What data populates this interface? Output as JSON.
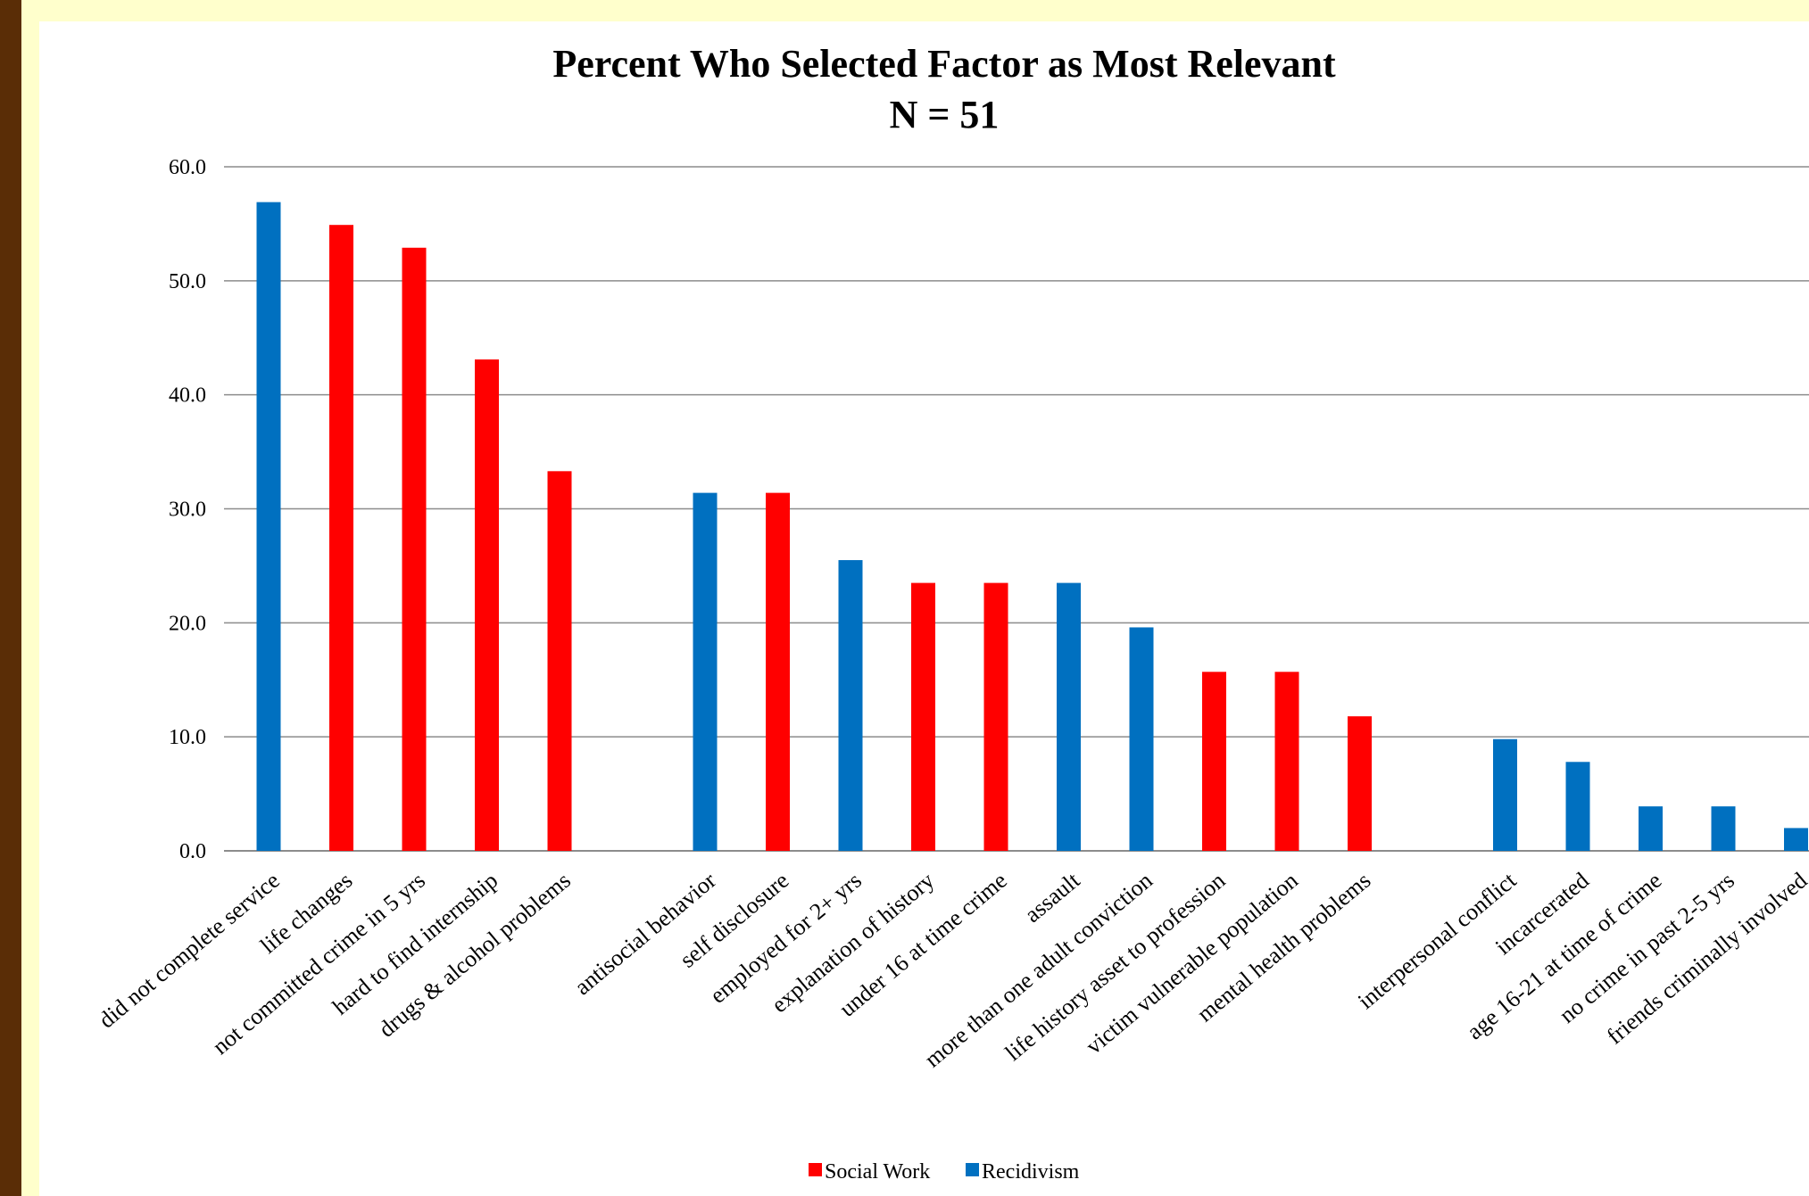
{
  "chart_data": {
    "type": "bar",
    "title": "Percent Who Selected Factor as Most Relevant",
    "subtitle": "N = 51",
    "xlabel": "",
    "ylabel": "",
    "ylim": [
      0,
      60
    ],
    "yticks": [
      "0.0",
      "10.0",
      "20.0",
      "30.0",
      "40.0",
      "50.0",
      "60.0"
    ],
    "grid": true,
    "legend_position": "bottom",
    "colors": {
      "social_work": "#ff0000",
      "recidivism": "#0070c0"
    },
    "series": [
      {
        "name": "Social Work",
        "color": "#ff0000"
      },
      {
        "name": "Recidivism",
        "color": "#0070c0"
      }
    ],
    "categories": [
      "did not complete service",
      "life changes",
      "not committed crime in 5 yrs",
      "hard to find internship",
      "drugs & alcohol problems",
      "",
      "antisocial behavior",
      "self disclosure",
      "employed for 2+ yrs",
      "explanation of history",
      "under 16 at time crime",
      "assault",
      "more than one adult conviction",
      "life history asset to profession",
      "victim vulnerable population",
      "mental health problems",
      "",
      "interpersonal conflict",
      "incarcerated",
      "age 16-21 at time of crime",
      "no crime in past 2-5 yrs",
      "friends criminally involved"
    ],
    "bars": [
      {
        "category": "did not complete service",
        "series": "Recidivism",
        "value": 56.9
      },
      {
        "category": "life changes",
        "series": "Social Work",
        "value": 54.9
      },
      {
        "category": "not committed crime in 5 yrs",
        "series": "Social Work",
        "value": 52.9
      },
      {
        "category": "hard to find internship",
        "series": "Social Work",
        "value": 43.1
      },
      {
        "category": "drugs & alcohol problems",
        "series": "Social Work",
        "value": 33.3
      },
      {
        "category": "antisocial behavior",
        "series": "Recidivism",
        "value": 31.4
      },
      {
        "category": "self disclosure",
        "series": "Social Work",
        "value": 31.4
      },
      {
        "category": "employed for 2+ yrs",
        "series": "Recidivism",
        "value": 25.5
      },
      {
        "category": "explanation of history",
        "series": "Social Work",
        "value": 23.5
      },
      {
        "category": "under 16 at time crime",
        "series": "Social Work",
        "value": 23.5
      },
      {
        "category": "assault",
        "series": "Recidivism",
        "value": 23.5
      },
      {
        "category": "more than one adult conviction",
        "series": "Recidivism",
        "value": 19.6
      },
      {
        "category": "life history asset to profession",
        "series": "Social Work",
        "value": 15.7
      },
      {
        "category": "victim vulnerable population",
        "series": "Social Work",
        "value": 15.7
      },
      {
        "category": "mental health problems",
        "series": "Social Work",
        "value": 11.8
      },
      {
        "category": "interpersonal conflict",
        "series": "Recidivism",
        "value": 9.8
      },
      {
        "category": "incarcerated",
        "series": "Recidivism",
        "value": 7.8
      },
      {
        "category": "age 16-21 at time of crime",
        "series": "Recidivism",
        "value": 3.9
      },
      {
        "category": "no crime in past 2-5 yrs",
        "series": "Recidivism",
        "value": 3.9
      },
      {
        "category": "friends criminally involved",
        "series": "Recidivism",
        "value": 2.0
      }
    ]
  }
}
